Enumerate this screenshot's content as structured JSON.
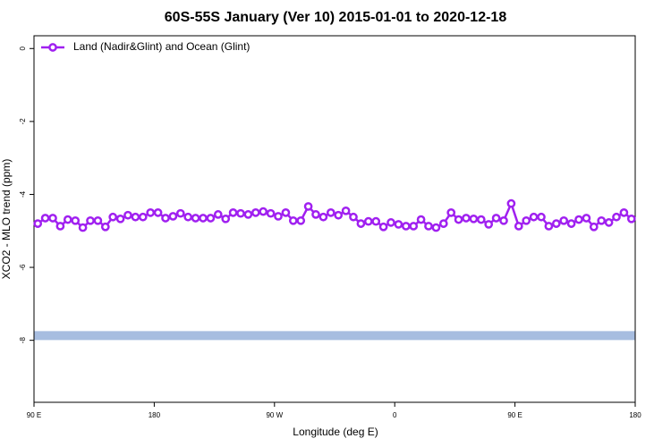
{
  "chart_data": {
    "type": "line",
    "title": "60S-55S January (Ver 10)   2015-01-01 to 2020-12-18",
    "x_label": "Longitude (deg E)",
    "y_label": "XCO2 - MLO trend (ppm)",
    "legend_position": "top-left",
    "xlim": [
      90,
      540
    ],
    "ylim": [
      -9.7,
      0.35
    ],
    "xticks": [
      {
        "value": 90,
        "label": "90 E"
      },
      180,
      {
        "value": 270,
        "label": "90 W"
      },
      {
        "value": 360,
        "label": "0"
      },
      {
        "value": 450,
        "label": "90 E"
      },
      {
        "value": 540,
        "label": "180"
      }
    ],
    "yticks": [
      0,
      -2,
      -4,
      -6,
      -8
    ],
    "reference_band": {
      "value": -7.87,
      "color": "#a7bde0"
    },
    "x": [
      92.81,
      98.44,
      104.06,
      109.69,
      115.31,
      120.94,
      126.56,
      132.19,
      137.81,
      143.44,
      149.06,
      154.69,
      160.31,
      165.94,
      171.56,
      177.19,
      182.81,
      188.44,
      194.06,
      199.69,
      205.31,
      210.94,
      216.56,
      222.19,
      227.81,
      233.44,
      239.06,
      244.69,
      250.31,
      255.94,
      261.56,
      267.19,
      272.81,
      278.44,
      284.06,
      289.69,
      295.31,
      300.94,
      306.56,
      312.19,
      317.81,
      323.44,
      329.06,
      334.69,
      340.31,
      345.94,
      351.56,
      357.19,
      362.81,
      368.44,
      374.06,
      379.69,
      385.31,
      390.94,
      396.56,
      402.19,
      407.81,
      413.44,
      419.06,
      424.69,
      430.31,
      435.94,
      441.56,
      447.19,
      452.81,
      458.44,
      464.06,
      469.69,
      475.31,
      480.94,
      486.56,
      492.19,
      497.81,
      503.44,
      509.06,
      514.69,
      520.31,
      525.94,
      531.56,
      537.19
    ],
    "series": [
      {
        "name": "Land (Nadir&Glint) and Ocean (Glint)",
        "color": "#a020f0",
        "values": [
          -4.8,
          -4.65,
          -4.65,
          -4.87,
          -4.69,
          -4.72,
          -4.91,
          -4.72,
          -4.72,
          -4.89,
          -4.62,
          -4.67,
          -4.57,
          -4.62,
          -4.62,
          -4.5,
          -4.5,
          -4.65,
          -4.6,
          -4.52,
          -4.62,
          -4.65,
          -4.65,
          -4.65,
          -4.55,
          -4.67,
          -4.5,
          -4.52,
          -4.55,
          -4.5,
          -4.47,
          -4.52,
          -4.6,
          -4.5,
          -4.72,
          -4.72,
          -4.33,
          -4.55,
          -4.62,
          -4.5,
          -4.57,
          -4.45,
          -4.62,
          -4.8,
          -4.74,
          -4.74,
          -4.89,
          -4.77,
          -4.82,
          -4.87,
          -4.87,
          -4.69,
          -4.87,
          -4.91,
          -4.8,
          -4.5,
          -4.69,
          -4.65,
          -4.67,
          -4.69,
          -4.82,
          -4.65,
          -4.72,
          -4.25,
          -4.87,
          -4.72,
          -4.62,
          -4.62,
          -4.87,
          -4.8,
          -4.72,
          -4.8,
          -4.69,
          -4.65,
          -4.89,
          -4.72,
          -4.77,
          -4.62,
          -4.5,
          -4.67
        ]
      }
    ]
  }
}
